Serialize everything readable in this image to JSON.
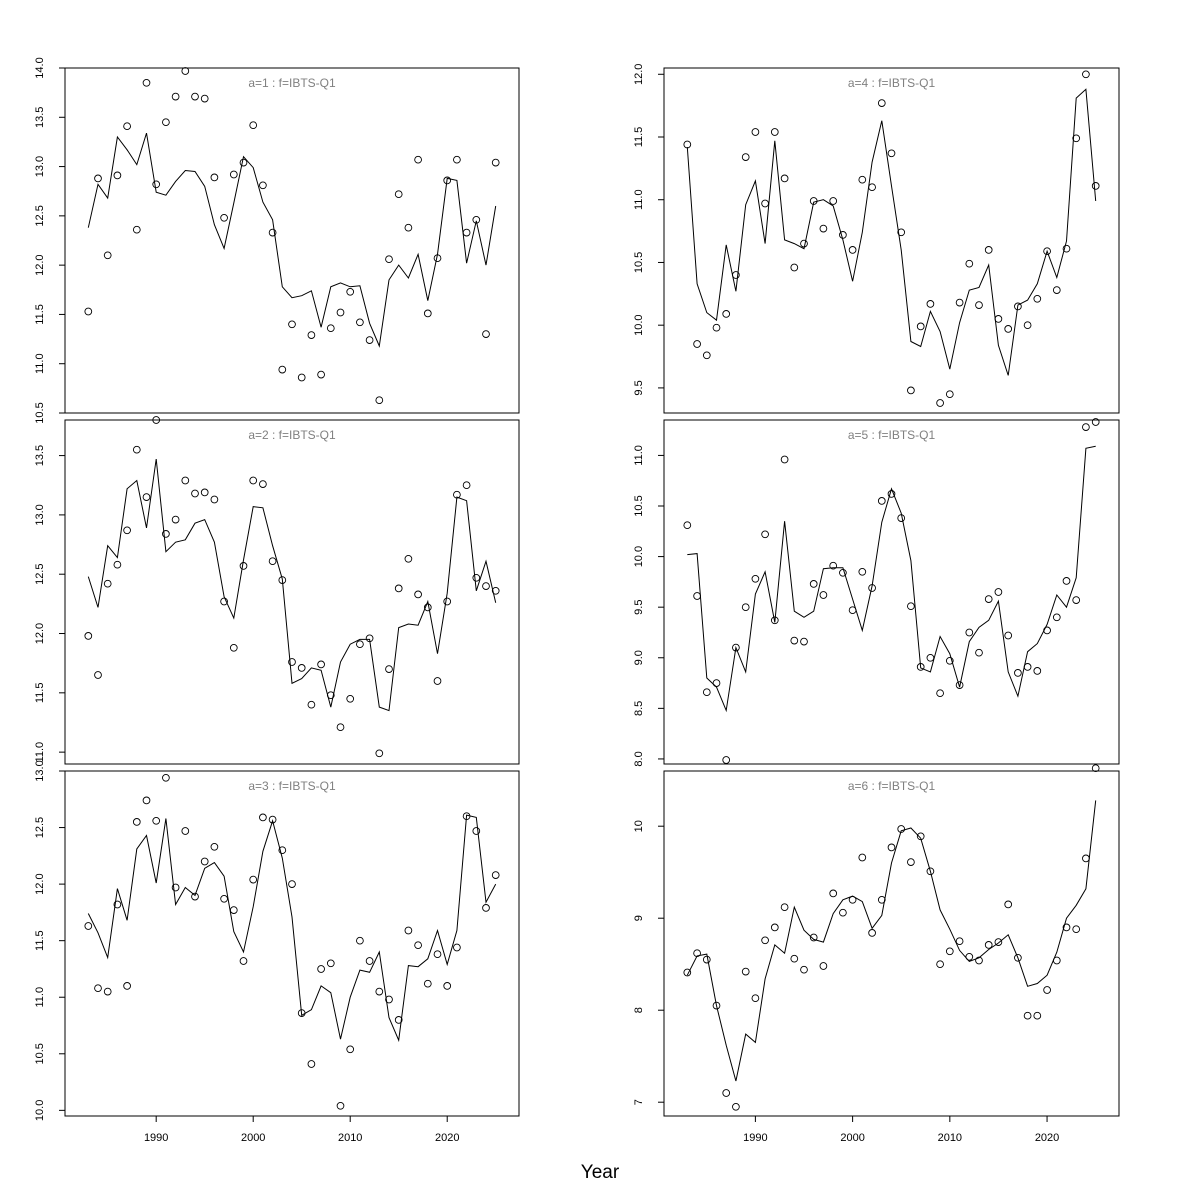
{
  "chart_data": {
    "layout": "3 rows x 2 columns, shared x axis per column",
    "xlabel": "Year",
    "xlim": [
      1980.6,
      2027.4
    ],
    "xticks": [
      1990,
      2000,
      2010,
      2020
    ],
    "panels": [
      {
        "title": "a=1  :  f=IBTS-Q1",
        "type": "scatter+line",
        "ylim": [
          10.5,
          14.0
        ],
        "yticks": [
          10.5,
          11.0,
          11.5,
          12.0,
          12.5,
          13.0,
          13.5,
          14.0
        ],
        "x": [
          1983,
          1984,
          1985,
          1986,
          1987,
          1988,
          1989,
          1990,
          1991,
          1992,
          1993,
          1994,
          1995,
          1996,
          1997,
          1998,
          1999,
          2000,
          2001,
          2002,
          2003,
          2004,
          2005,
          2006,
          2007,
          2008,
          2009,
          2010,
          2011,
          2012,
          2013,
          2014,
          2015,
          2016,
          2017,
          2018,
          2019,
          2020,
          2021,
          2022,
          2023,
          2024,
          2025
        ],
        "observed": [
          11.53,
          12.88,
          12.1,
          12.91,
          13.41,
          12.36,
          13.85,
          12.82,
          13.45,
          13.71,
          13.97,
          13.71,
          13.69,
          12.89,
          12.48,
          12.92,
          13.04,
          13.42,
          12.81,
          12.33,
          10.94,
          11.4,
          10.86,
          11.29,
          10.89,
          11.36,
          11.52,
          11.73,
          11.42,
          11.24,
          10.63,
          12.06,
          12.72,
          12.38,
          13.07,
          11.51,
          12.07,
          12.86,
          13.07,
          12.33,
          12.46,
          11.3,
          13.04
        ],
        "fitted": [
          12.38,
          12.82,
          12.68,
          13.3,
          13.17,
          13.02,
          13.34,
          12.74,
          12.71,
          12.85,
          12.96,
          12.95,
          12.8,
          12.41,
          12.17,
          12.63,
          13.1,
          12.99,
          12.64,
          12.46,
          11.78,
          11.67,
          11.69,
          11.74,
          11.37,
          11.78,
          11.82,
          11.78,
          11.79,
          11.41,
          11.18,
          11.85,
          12.0,
          11.87,
          12.11,
          11.64,
          12.11,
          12.88,
          12.86,
          12.02,
          12.45,
          12.0,
          12.6
        ]
      },
      {
        "title": "a=4  :  f=IBTS-Q1",
        "type": "scatter+line",
        "ylim": [
          9.3,
          12.05
        ],
        "yticks": [
          9.5,
          10.0,
          10.5,
          11.0,
          11.5,
          12.0
        ],
        "x": [
          1983,
          1984,
          1985,
          1986,
          1987,
          1988,
          1989,
          1990,
          1991,
          1992,
          1993,
          1994,
          1995,
          1996,
          1997,
          1998,
          1999,
          2000,
          2001,
          2002,
          2003,
          2004,
          2005,
          2006,
          2007,
          2008,
          2009,
          2010,
          2011,
          2012,
          2013,
          2014,
          2015,
          2016,
          2017,
          2018,
          2019,
          2020,
          2021,
          2022,
          2023,
          2024,
          2025
        ],
        "observed": [
          11.44,
          9.85,
          9.76,
          9.98,
          10.09,
          10.4,
          11.34,
          11.54,
          10.97,
          11.54,
          11.17,
          10.46,
          10.65,
          10.99,
          10.77,
          10.99,
          10.72,
          10.6,
          11.16,
          11.1,
          11.77,
          11.37,
          10.74,
          9.48,
          9.99,
          10.17,
          9.38,
          9.45,
          10.18,
          10.49,
          10.16,
          10.6,
          10.05,
          9.97,
          10.15,
          10.0,
          10.21,
          10.59,
          10.28,
          10.61,
          11.49,
          12.0,
          11.11
        ],
        "fitted": [
          11.42,
          10.33,
          10.1,
          10.04,
          10.64,
          10.27,
          10.96,
          11.15,
          10.65,
          11.47,
          10.68,
          10.65,
          10.61,
          10.98,
          11.0,
          10.95,
          10.68,
          10.35,
          10.74,
          11.3,
          11.63,
          11.11,
          10.6,
          9.87,
          9.83,
          10.11,
          9.95,
          9.65,
          10.02,
          10.28,
          10.3,
          10.48,
          9.84,
          9.6,
          10.16,
          10.2,
          10.33,
          10.59,
          10.38,
          10.67,
          11.81,
          11.88,
          10.99
        ]
      },
      {
        "title": "a=2  :  f=IBTS-Q1",
        "type": "scatter+line",
        "ylim": [
          10.9,
          13.8
        ],
        "yticks": [
          11.0,
          11.5,
          12.0,
          12.5,
          13.0,
          13.5
        ],
        "x": [
          1983,
          1984,
          1985,
          1986,
          1987,
          1988,
          1989,
          1990,
          1991,
          1992,
          1993,
          1994,
          1995,
          1996,
          1997,
          1998,
          1999,
          2000,
          2001,
          2002,
          2003,
          2004,
          2005,
          2006,
          2007,
          2008,
          2009,
          2010,
          2011,
          2012,
          2013,
          2014,
          2015,
          2016,
          2017,
          2018,
          2019,
          2020,
          2021,
          2022,
          2023,
          2024,
          2025
        ],
        "observed": [
          11.98,
          11.65,
          12.42,
          12.58,
          12.87,
          13.55,
          13.15,
          13.8,
          12.84,
          12.96,
          13.29,
          13.18,
          13.19,
          13.13,
          12.27,
          11.88,
          12.57,
          13.29,
          13.26,
          12.61,
          12.45,
          11.76,
          11.71,
          11.4,
          11.74,
          11.48,
          11.21,
          11.45,
          11.91,
          11.96,
          10.99,
          11.7,
          12.38,
          12.63,
          12.33,
          12.22,
          11.6,
          12.27,
          13.17,
          13.25,
          12.47,
          12.4,
          12.36
        ],
        "fitted": [
          12.48,
          12.22,
          12.74,
          12.64,
          13.22,
          13.29,
          12.89,
          13.47,
          12.69,
          12.77,
          12.79,
          12.93,
          12.96,
          12.77,
          12.31,
          12.13,
          12.62,
          13.07,
          13.06,
          12.74,
          12.46,
          11.58,
          11.62,
          11.71,
          11.69,
          11.38,
          11.76,
          11.91,
          11.95,
          11.95,
          11.38,
          11.35,
          12.05,
          12.08,
          12.07,
          12.27,
          11.83,
          12.34,
          13.15,
          13.12,
          12.36,
          12.61,
          12.26
        ]
      },
      {
        "title": "a=5  :  f=IBTS-Q1",
        "type": "scatter+line",
        "ylim": [
          7.95,
          11.35
        ],
        "yticks": [
          8.0,
          8.5,
          9.0,
          9.5,
          10.0,
          10.5,
          11.0
        ],
        "x": [
          1983,
          1984,
          1985,
          1986,
          1987,
          1988,
          1989,
          1990,
          1991,
          1992,
          1993,
          1994,
          1995,
          1996,
          1997,
          1998,
          1999,
          2000,
          2001,
          2002,
          2003,
          2004,
          2005,
          2006,
          2007,
          2008,
          2009,
          2010,
          2011,
          2012,
          2013,
          2014,
          2015,
          2016,
          2017,
          2018,
          2019,
          2020,
          2021,
          2022,
          2023,
          2024,
          2025
        ],
        "observed": [
          10.31,
          9.61,
          8.66,
          8.75,
          7.99,
          9.1,
          9.5,
          9.78,
          10.22,
          9.37,
          10.96,
          9.17,
          9.16,
          9.73,
          9.62,
          9.91,
          9.84,
          9.47,
          9.85,
          9.69,
          10.55,
          10.62,
          10.38,
          9.51,
          8.91,
          9.0,
          8.65,
          8.97,
          8.73,
          9.25,
          9.05,
          9.58,
          9.65,
          9.22,
          8.85,
          8.91,
          8.87,
          9.27,
          9.4,
          9.76,
          9.57,
          11.28,
          11.33
        ],
        "fitted": [
          10.02,
          10.03,
          8.8,
          8.71,
          8.48,
          9.1,
          8.86,
          9.63,
          9.85,
          9.35,
          10.35,
          9.46,
          9.4,
          9.46,
          9.88,
          9.89,
          9.89,
          9.58,
          9.27,
          9.71,
          10.34,
          10.67,
          10.43,
          9.96,
          8.9,
          8.86,
          9.21,
          9.04,
          8.71,
          9.16,
          9.3,
          9.37,
          9.56,
          8.86,
          8.62,
          9.06,
          9.14,
          9.33,
          9.62,
          9.5,
          9.79,
          11.07,
          11.09
        ]
      },
      {
        "title": "a=3  :  f=IBTS-Q1",
        "type": "scatter+line",
        "ylim": [
          9.95,
          13.0
        ],
        "yticks": [
          10.0,
          10.5,
          11.0,
          11.5,
          12.0,
          12.5,
          13.0
        ],
        "x": [
          1983,
          1984,
          1985,
          1986,
          1987,
          1988,
          1989,
          1990,
          1991,
          1992,
          1993,
          1994,
          1995,
          1996,
          1997,
          1998,
          1999,
          2000,
          2001,
          2002,
          2003,
          2004,
          2005,
          2006,
          2007,
          2008,
          2009,
          2010,
          2011,
          2012,
          2013,
          2014,
          2015,
          2016,
          2017,
          2018,
          2019,
          2020,
          2021,
          2022,
          2023,
          2024,
          2025
        ],
        "observed": [
          11.63,
          11.08,
          11.05,
          11.82,
          11.1,
          12.55,
          12.74,
          12.56,
          12.94,
          11.97,
          12.47,
          11.89,
          12.2,
          12.33,
          11.87,
          11.77,
          11.32,
          12.04,
          12.59,
          12.57,
          12.3,
          12.0,
          10.86,
          10.41,
          11.25,
          11.3,
          10.04,
          10.54,
          11.5,
          11.32,
          11.05,
          10.98,
          10.8,
          11.59,
          11.46,
          11.12,
          11.38,
          11.1,
          11.44,
          12.6,
          12.47,
          11.79,
          12.08
        ],
        "fitted": [
          11.74,
          11.57,
          11.35,
          11.96,
          11.68,
          12.31,
          12.43,
          12.01,
          12.58,
          11.82,
          11.97,
          11.9,
          12.14,
          12.19,
          12.07,
          11.58,
          11.4,
          11.8,
          12.29,
          12.56,
          12.23,
          11.71,
          10.84,
          10.89,
          11.1,
          11.04,
          10.63,
          11.0,
          11.24,
          11.22,
          11.4,
          10.82,
          10.62,
          11.28,
          11.27,
          11.34,
          11.59,
          11.29,
          11.59,
          12.61,
          12.59,
          11.84,
          12.0
        ]
      },
      {
        "title": "a=6  :  f=IBTS-Q1",
        "type": "scatter+line",
        "ylim": [
          6.85,
          10.6
        ],
        "yticks": [
          7,
          8,
          9,
          10
        ],
        "x": [
          1983,
          1984,
          1985,
          1986,
          1987,
          1988,
          1989,
          1990,
          1991,
          1992,
          1993,
          1994,
          1995,
          1996,
          1997,
          1998,
          1999,
          2000,
          2001,
          2002,
          2003,
          2004,
          2005,
          2006,
          2007,
          2008,
          2009,
          2010,
          2011,
          2012,
          2013,
          2014,
          2015,
          2016,
          2017,
          2018,
          2019,
          2020,
          2021,
          2022,
          2023,
          2024,
          2025
        ],
        "observed": [
          8.41,
          8.62,
          8.55,
          8.05,
          7.1,
          6.95,
          8.42,
          8.13,
          8.76,
          8.9,
          9.12,
          8.56,
          8.44,
          8.79,
          8.48,
          9.27,
          9.06,
          9.2,
          9.66,
          8.84,
          9.2,
          9.77,
          9.97,
          9.61,
          9.89,
          9.51,
          8.5,
          8.64,
          8.75,
          8.58,
          8.54,
          8.71,
          8.74,
          9.15,
          8.57,
          7.94,
          7.94,
          8.22,
          8.54,
          8.9,
          8.88,
          9.65,
          10.63
        ],
        "fitted": [
          8.38,
          8.59,
          8.61,
          8.05,
          7.62,
          7.23,
          7.74,
          7.65,
          8.34,
          8.71,
          8.62,
          9.12,
          8.87,
          8.77,
          8.74,
          9.05,
          9.2,
          9.24,
          9.18,
          8.89,
          9.03,
          9.6,
          9.95,
          9.98,
          9.87,
          9.51,
          9.09,
          8.88,
          8.65,
          8.53,
          8.57,
          8.66,
          8.73,
          8.82,
          8.57,
          8.26,
          8.29,
          8.38,
          8.63,
          9.0,
          9.14,
          9.32,
          10.28
        ]
      }
    ]
  }
}
